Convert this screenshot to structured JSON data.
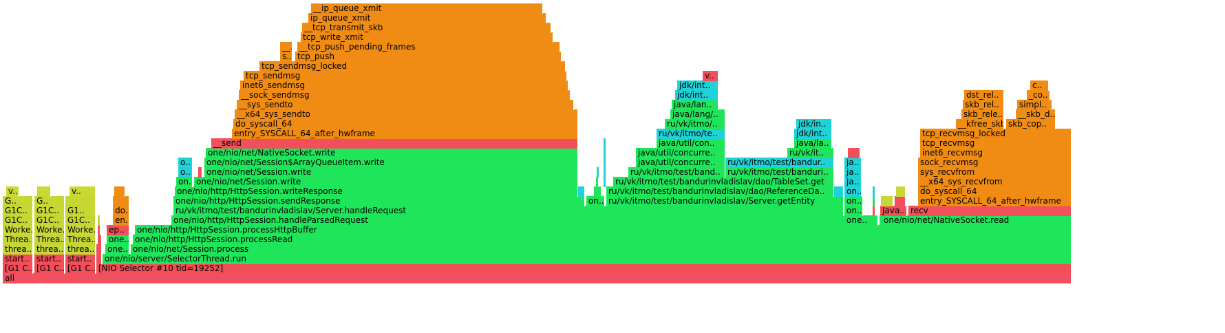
{
  "flamegraph": {
    "frames": [
      {
        "name": "all",
        "row": 0,
        "start": 0.0,
        "end": 1553.0,
        "c": "#f15060"
      },
      {
        "name": "[G1 C..",
        "row": 1,
        "start": 0.0,
        "end": 44.0,
        "c": "#f14e58"
      },
      {
        "name": "[G1 C..",
        "row": 1,
        "start": 46.0,
        "end": 90.0,
        "c": "#f14e58"
      },
      {
        "name": "[G1 C..",
        "row": 1,
        "start": 91.0,
        "end": 135.0,
        "c": "#f14e58"
      },
      {
        "name": "[NIO Selector #10 tid=19252]",
        "row": 1,
        "start": 136.0,
        "end": 1553.0,
        "c": "#f14e58"
      },
      {
        "name": "start..",
        "row": 2,
        "start": 0.0,
        "end": 44.0,
        "c": "#f04f5b"
      },
      {
        "name": "start..",
        "row": 2,
        "start": 46.0,
        "end": 90.0,
        "c": "#f04f5b"
      },
      {
        "name": "start..",
        "row": 2,
        "start": 91.0,
        "end": 135.0,
        "c": "#f04f5b"
      },
      {
        "name": "",
        "row": 2,
        "start": 136.0,
        "end": 144.0,
        "c": "#f04f5b"
      },
      {
        "name": "one/nio/server/SelectorThread.run",
        "row": 2,
        "start": 145.0,
        "end": 1553.0,
        "c": "#1ee55a"
      },
      {
        "name": "threa..",
        "row": 3,
        "start": 0.0,
        "end": 44.0,
        "c": "#c6d834"
      },
      {
        "name": "threa..",
        "row": 3,
        "start": 46.0,
        "end": 90.0,
        "c": "#c6d834"
      },
      {
        "name": "threa..",
        "row": 3,
        "start": 91.0,
        "end": 135.0,
        "c": "#c6d834"
      },
      {
        "name": "",
        "row": 3,
        "start": 136.0,
        "end": 144.0,
        "c": "#f04f5b"
      },
      {
        "name": "one..",
        "row": 3,
        "start": 149.0,
        "end": 184.0,
        "c": "#1ee55a"
      },
      {
        "name": "one/nio/net/Session.process",
        "row": 3,
        "start": 186.0,
        "end": 1553.0,
        "c": "#1ee55a"
      },
      {
        "name": "Threa..",
        "row": 4,
        "start": 0.0,
        "end": 44.0,
        "c": "#c3d634"
      },
      {
        "name": "Threa..",
        "row": 4,
        "start": 46.0,
        "end": 90.0,
        "c": "#c3d634"
      },
      {
        "name": "Threa..",
        "row": 4,
        "start": 91.0,
        "end": 135.0,
        "c": "#c3d634"
      },
      {
        "name": "",
        "row": 4,
        "start": 138.0,
        "end": 144.0,
        "c": "#f04f5b"
      },
      {
        "name": "one..",
        "row": 4,
        "start": 151.0,
        "end": 184.0,
        "c": "#1ee55a"
      },
      {
        "name": "one/nio/http/HttpSession.processRead",
        "row": 4,
        "start": 189.0,
        "end": 1553.0,
        "c": "#1ee55a"
      },
      {
        "name": "Worke..",
        "row": 5,
        "start": 0.0,
        "end": 44.0,
        "c": "#c9d835"
      },
      {
        "name": "Worke..",
        "row": 5,
        "start": 46.0,
        "end": 90.0,
        "c": "#c9d835"
      },
      {
        "name": "Worke..",
        "row": 5,
        "start": 91.0,
        "end": 135.0,
        "c": "#c9d835"
      },
      {
        "name": "",
        "row": 5,
        "start": 138.0,
        "end": 142.0,
        "c": "#f04f5b"
      },
      {
        "name": "ep..",
        "row": 5,
        "start": 151.0,
        "end": 184.0,
        "c": "#f04f5b"
      },
      {
        "name": "one/nio/http/HttpSession.processHttpBuffer",
        "row": 5,
        "start": 192.0,
        "end": 1553.0,
        "c": "#1ee55a"
      },
      {
        "name": "G1C..",
        "row": 6,
        "start": 0.0,
        "end": 44.0,
        "c": "#c4d634"
      },
      {
        "name": "G1C..",
        "row": 6,
        "start": 46.0,
        "end": 90.0,
        "c": "#c4d634"
      },
      {
        "name": "G1C..",
        "row": 6,
        "start": 91.0,
        "end": 135.0,
        "c": "#c4d634"
      },
      {
        "name": "",
        "row": 6,
        "start": 138.0,
        "end": 142.0,
        "c": "#c4d634"
      },
      {
        "name": "en..",
        "row": 6,
        "start": 160.0,
        "end": 184.0,
        "c": "#f08b14"
      },
      {
        "name": "one/nio/http/HttpSession.handleParsedRequest",
        "row": 6,
        "start": 245.0,
        "end": 1270.0,
        "c": "#1ee55a"
      },
      {
        "name": "one..",
        "row": 6,
        "start": 1223.0,
        "end": 1272.0,
        "c": "#1ee55a"
      },
      {
        "name": "",
        "row": 6,
        "start": 1274.0,
        "end": 1278.0,
        "c": "#1ee55a"
      },
      {
        "name": "one/nio/net/NativeSocket.read",
        "row": 6,
        "start": 1277.0,
        "end": 1553.0,
        "c": "#1ee55a"
      },
      {
        "name": "G1C..",
        "row": 7,
        "start": 0.0,
        "end": 44.0,
        "c": "#c6d734"
      },
      {
        "name": "G1C..",
        "row": 7,
        "start": 46.0,
        "end": 90.0,
        "c": "#c6d734"
      },
      {
        "name": "G1..",
        "row": 7,
        "start": 91.0,
        "end": 135.0,
        "c": "#c6d734"
      },
      {
        "name": "do..",
        "row": 7,
        "start": 160.0,
        "end": 184.0,
        "c": "#f08b14"
      },
      {
        "name": "ru/vk/itmo/test/bandurinvladislav/Server.handleRequest",
        "row": 7,
        "start": 248.0,
        "end": 1222.0,
        "c": "#1ee55a"
      },
      {
        "name": "on..",
        "row": 7,
        "start": 1223.0,
        "end": 1250.0,
        "c": "#1ee55a"
      },
      {
        "name": "",
        "row": 7,
        "start": 1264.0,
        "end": 1268.0,
        "c": "#f04f5b"
      },
      {
        "name": "Java..",
        "row": 7,
        "start": 1275.0,
        "end": 1314.0,
        "c": "#f04f5b"
      },
      {
        "name": "recv",
        "row": 7,
        "start": 1316.0,
        "end": 1553.0,
        "c": "#f04f5b"
      },
      {
        "name": "G..",
        "row": 8,
        "start": 0.0,
        "end": 44.0,
        "c": "#c6d734"
      },
      {
        "name": "G..",
        "row": 8,
        "start": 46.0,
        "end": 90.0,
        "c": "#c6d734"
      },
      {
        "name": "",
        "row": 8,
        "start": 91.0,
        "end": 135.0,
        "c": "#c6d734"
      },
      {
        "name": "",
        "row": 8,
        "start": 160.0,
        "end": 184.0,
        "c": "#f08b14"
      },
      {
        "name": "one/nio/http/HttpSession.sendResponse",
        "row": 8,
        "start": 248.0,
        "end": 846.0,
        "c": "#1ee55a"
      },
      {
        "name": "on..",
        "row": 8,
        "start": 848.0,
        "end": 875.0,
        "c": "#1ee55a"
      },
      {
        "name": "ru/vk/itmo/test/bandurinvladislav/Server.getEntity",
        "row": 8,
        "start": 877.0,
        "end": 1222.0,
        "c": "#1ee55a"
      },
      {
        "name": "on..",
        "row": 8,
        "start": 1223.0,
        "end": 1250.0,
        "c": "#1ee55a"
      },
      {
        "name": "",
        "row": 8,
        "start": 1264.0,
        "end": 1268.0,
        "c": "#1ee55a"
      },
      {
        "name": "",
        "row": 8,
        "start": 1276.0,
        "end": 1294.0,
        "c": "#c9d635"
      },
      {
        "name": "",
        "row": 8,
        "start": 1296.0,
        "end": 1312.0,
        "c": "#f04f5b"
      },
      {
        "name": "entry_SYSCALL_64_after_hwframe",
        "row": 8,
        "start": 1330.0,
        "end": 1553.0,
        "c": "#f08b14"
      },
      {
        "name": "v..",
        "row": 9,
        "start": 5.0,
        "end": 24.0,
        "c": "#c9d835"
      },
      {
        "name": "",
        "row": 9,
        "start": 50.0,
        "end": 70.0,
        "c": "#c9d835"
      },
      {
        "name": "v..",
        "row": 9,
        "start": 97.0,
        "end": 135.0,
        "c": "#c9d835"
      },
      {
        "name": "",
        "row": 9,
        "start": 162.0,
        "end": 178.0,
        "c": "#f08b14"
      },
      {
        "name": "one/nio/http/HttpSession.writeResponse",
        "row": 9,
        "start": 250.0,
        "end": 836.0,
        "c": "#1ee55a"
      },
      {
        "name": "",
        "row": 9,
        "start": 836.0,
        "end": 846.0,
        "c": "#1ed2d8"
      },
      {
        "name": "",
        "row": 9,
        "start": 859.0,
        "end": 870.0,
        "c": "#1ee55a"
      },
      {
        "name": "ru/vk/itmo/test/bandurinvladislav/dao/ReferenceDa..",
        "row": 9,
        "start": 877.0,
        "end": 1208.0,
        "c": "#1ee55a"
      },
      {
        "name": "",
        "row": 9,
        "start": 1208.0,
        "end": 1222.0,
        "c": "#1ed2d8"
      },
      {
        "name": "on..",
        "row": 9,
        "start": 1223.0,
        "end": 1248.0,
        "c": "#1ed2d8"
      },
      {
        "name": "",
        "row": 9,
        "start": 1264.0,
        "end": 1268.0,
        "c": "#1ed2d8"
      },
      {
        "name": "",
        "row": 9,
        "start": 1298.0,
        "end": 1312.0,
        "c": "#c9d635"
      },
      {
        "name": "do_syscall_64",
        "row": 9,
        "start": 1330.0,
        "end": 1553.0,
        "c": "#f08b14"
      },
      {
        "name": "on..",
        "row": 10,
        "start": 252.0,
        "end": 276.0,
        "c": "#1ee55a"
      },
      {
        "name": "one/nio/net/Session.write",
        "row": 10,
        "start": 278.0,
        "end": 836.0,
        "c": "#1ee55a"
      },
      {
        "name": "",
        "row": 10,
        "start": 862.0,
        "end": 866.0,
        "c": "#1ee55a"
      },
      {
        "name": "",
        "row": 10,
        "start": 873.0,
        "end": 877.0,
        "c": "#1ed2d8"
      },
      {
        "name": "ru/vk/itmo/test/bandurinvladislav/dao/TableSet.get",
        "row": 10,
        "start": 887.0,
        "end": 1208.0,
        "c": "#1ee55a"
      },
      {
        "name": "ja..",
        "row": 10,
        "start": 1223.0,
        "end": 1248.0,
        "c": "#1ed2d8"
      },
      {
        "name": "__x64_sys_recvfrom",
        "row": 10,
        "start": 1330.0,
        "end": 1553.0,
        "c": "#f08b14"
      },
      {
        "name": "o..",
        "row": 11,
        "start": 255.0,
        "end": 276.0,
        "c": "#1ed2d8"
      },
      {
        "name": "",
        "row": 11,
        "start": 284.0,
        "end": 290.0,
        "c": "#f04f5b"
      },
      {
        "name": "one/nio/net/Session.write",
        "row": 11,
        "start": 293.0,
        "end": 836.0,
        "c": "#1ee55a"
      },
      {
        "name": "",
        "row": 11,
        "start": 863.0,
        "end": 866.0,
        "c": "#1ed2d8"
      },
      {
        "name": "",
        "row": 11,
        "start": 873.0,
        "end": 877.0,
        "c": "#1ed2d8"
      },
      {
        "name": "ru/vk/itmo/test/band..",
        "row": 11,
        "start": 909.0,
        "end": 1050.0,
        "c": "#1ee55a"
      },
      {
        "name": "ru/vk/itmo/test/banduri..",
        "row": 11,
        "start": 1050.0,
        "end": 1208.0,
        "c": "#1ee55a"
      },
      {
        "name": "ja..",
        "row": 11,
        "start": 1223.0,
        "end": 1248.0,
        "c": "#1ed2d8"
      },
      {
        "name": "sys_recvfrom",
        "row": 11,
        "start": 1330.0,
        "end": 1553.0,
        "c": "#f08b14"
      },
      {
        "name": "o..",
        "row": 12,
        "start": 255.0,
        "end": 276.0,
        "c": "#1ed2d8"
      },
      {
        "name": "one/nio/net/Session$ArrayQueueItem.write",
        "row": 12,
        "start": 293.0,
        "end": 836.0,
        "c": "#1ee55a"
      },
      {
        "name": "",
        "row": 12,
        "start": 873.0,
        "end": 877.0,
        "c": "#1ed2d8"
      },
      {
        "name": "java/util/concurre..",
        "row": 12,
        "start": 920.0,
        "end": 1050.0,
        "c": "#1ee55a"
      },
      {
        "name": "ru/vk/itmo/test/bandur..",
        "row": 12,
        "start": 1050.0,
        "end": 1208.0,
        "c": "#1ed2d8"
      },
      {
        "name": "ja..",
        "row": 12,
        "start": 1223.0,
        "end": 1248.0,
        "c": "#1ed2d8"
      },
      {
        "name": "sock_recvmsg",
        "row": 12,
        "start": 1330.0,
        "end": 1553.0,
        "c": "#f08b14"
      },
      {
        "name": "one/nio/net/NativeSocket.write",
        "row": 13,
        "start": 295.0,
        "end": 836.0,
        "c": "#1ee55a"
      },
      {
        "name": "",
        "row": 13,
        "start": 873.0,
        "end": 877.0,
        "c": "#1ed2d8"
      },
      {
        "name": "java/util/concurre..",
        "row": 13,
        "start": 920.0,
        "end": 1050.0,
        "c": "#1ee55a"
      },
      {
        "name": "ru/vk/it..",
        "row": 13,
        "start": 1140.0,
        "end": 1208.0,
        "c": "#1ee55a"
      },
      {
        "name": "",
        "row": 13,
        "start": 1228.0,
        "end": 1246.0,
        "c": "#f04f5b"
      },
      {
        "name": "inet6_recvmsg",
        "row": 13,
        "start": 1333.0,
        "end": 1553.0,
        "c": "#f08b14"
      },
      {
        "name": "__send",
        "row": 14,
        "start": 303.0,
        "end": 836.0,
        "c": "#f04f5b"
      },
      {
        "name": "",
        "row": 14,
        "start": 873.0,
        "end": 877.0,
        "c": "#1ed2d8"
      },
      {
        "name": "java/util/con..",
        "row": 14,
        "start": 950.0,
        "end": 1050.0,
        "c": "#1ee55a"
      },
      {
        "name": "java/la..",
        "row": 14,
        "start": 1150.0,
        "end": 1205.0,
        "c": "#1ee55a"
      },
      {
        "name": "tcp_recvmsg",
        "row": 14,
        "start": 1333.0,
        "end": 1553.0,
        "c": "#f08b14"
      },
      {
        "name": "entry_SYSCALL_64_after_hwframe",
        "row": 15,
        "start": 333.0,
        "end": 836.0,
        "c": "#f08b14"
      },
      {
        "name": "ru/vk/itmo/te..",
        "row": 15,
        "start": 950.0,
        "end": 1050.0,
        "c": "#1ed2d8"
      },
      {
        "name": "jdk/int..",
        "row": 15,
        "start": 1150.0,
        "end": 1205.0,
        "c": "#1ed2d8"
      },
      {
        "name": "tcp_recvmsg_locked",
        "row": 15,
        "start": 1333.0,
        "end": 1553.0,
        "c": "#f08b14"
      },
      {
        "name": "do_syscall_64",
        "row": 16,
        "start": 335.0,
        "end": 836.0,
        "c": "#f08b14"
      },
      {
        "name": "ru/vk/itmo/..",
        "row": 16,
        "start": 962.0,
        "end": 1050.0,
        "c": "#1ee55a"
      },
      {
        "name": "jdk/in..",
        "row": 16,
        "start": 1153.0,
        "end": 1205.0,
        "c": "#1ed2d8"
      },
      {
        "name": "__kfree_skb",
        "row": 16,
        "start": 1385.0,
        "end": 1455.0,
        "c": "#f08b14"
      },
      {
        "name": "skb_cop..",
        "row": 16,
        "start": 1458.0,
        "end": 1530.0,
        "c": "#f08b14"
      },
      {
        "name": "__x64_sys_sendto",
        "row": 17,
        "start": 337.0,
        "end": 836.0,
        "c": "#f08b14"
      },
      {
        "name": "java/lang/..",
        "row": 17,
        "start": 970.0,
        "end": 1050.0,
        "c": "#1ee55a"
      },
      {
        "name": "skb_rele..",
        "row": 17,
        "start": 1393.0,
        "end": 1455.0,
        "c": "#f08b14"
      },
      {
        "name": "__skb_d..",
        "row": 17,
        "start": 1472.0,
        "end": 1530.0,
        "c": "#f08b14"
      },
      {
        "name": "__sys_sendto",
        "row": 18,
        "start": 340.0,
        "end": 830.0,
        "c": "#f08b14"
      },
      {
        "name": "java/lan..",
        "row": 18,
        "start": 972.0,
        "end": 1040.0,
        "c": "#1ee55a"
      },
      {
        "name": "skb_rel..",
        "row": 18,
        "start": 1395.0,
        "end": 1455.0,
        "c": "#f08b14"
      },
      {
        "name": "simpl..",
        "row": 18,
        "start": 1474.0,
        "end": 1525.0,
        "c": "#f08b14"
      },
      {
        "name": "__sock_sendmsg",
        "row": 19,
        "start": 343.0,
        "end": 825.0,
        "c": "#f08b14"
      },
      {
        "name": "jdk/int..",
        "row": 19,
        "start": 977.0,
        "end": 1040.0,
        "c": "#1ed2d8"
      },
      {
        "name": "dst_rel..",
        "row": 19,
        "start": 1397.0,
        "end": 1455.0,
        "c": "#f08b14"
      },
      {
        "name": "_co..",
        "row": 19,
        "start": 1488.0,
        "end": 1522.0,
        "c": "#f08b14"
      },
      {
        "name": "inet6_sendmsg",
        "row": 20,
        "start": 345.0,
        "end": 822.0,
        "c": "#f08b14"
      },
      {
        "name": "jdk/int..",
        "row": 20,
        "start": 980.0,
        "end": 1040.0,
        "c": "#1ed2d8"
      },
      {
        "name": "c..",
        "row": 20,
        "start": 1493.0,
        "end": 1520.0,
        "c": "#f08b14"
      },
      {
        "name": "tcp_sendmsg",
        "row": 21,
        "start": 350.0,
        "end": 820.0,
        "c": "#f08b14"
      },
      {
        "name": "v..",
        "row": 21,
        "start": 1017.0,
        "end": 1040.0,
        "c": "#f04f5b"
      },
      {
        "name": "tcp_sendmsg_locked",
        "row": 22,
        "start": 373.0,
        "end": 818.0,
        "c": "#f08b14"
      },
      {
        "name": "s..",
        "row": 23,
        "start": 403.0,
        "end": 421.0,
        "c": "#f08b14"
      },
      {
        "name": "tcp_push",
        "row": 23,
        "start": 425.0,
        "end": 812.0,
        "c": "#f08b14"
      },
      {
        "name": "__..",
        "row": 24,
        "start": 403.0,
        "end": 421.0,
        "c": "#f08b14"
      },
      {
        "name": "__tcp_push_pending_frames",
        "row": 24,
        "start": 428.0,
        "end": 810.0,
        "c": "#f08b14"
      },
      {
        "name": "tcp_write_xmit",
        "row": 25,
        "start": 433.0,
        "end": 800.0,
        "c": "#f08b14"
      },
      {
        "name": "__tcp_transmit_skb",
        "row": 26,
        "start": 435.0,
        "end": 797.0,
        "c": "#f08b14"
      },
      {
        "name": "ip_queue_xmit",
        "row": 27,
        "start": 444.0,
        "end": 790.0,
        "c": "#f08b14"
      },
      {
        "name": "__ip_queue_xmit",
        "row": 28,
        "start": 448.0,
        "end": 785.0,
        "c": "#f08b14"
      }
    ]
  }
}
